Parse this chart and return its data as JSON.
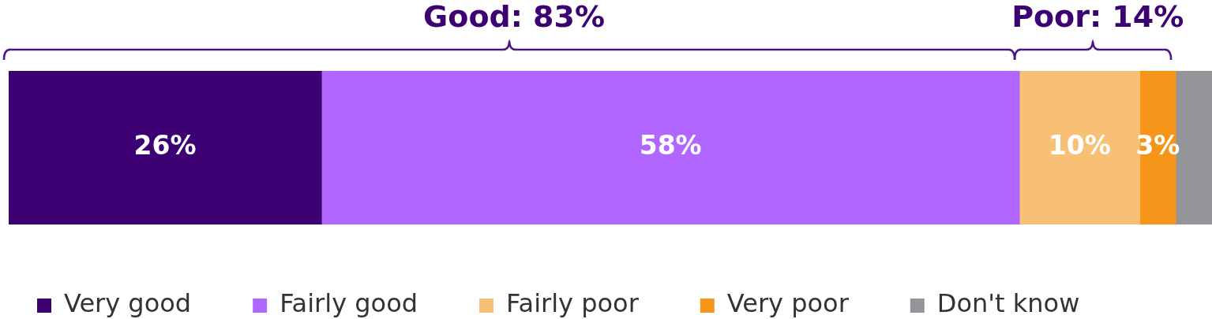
{
  "chart_data": {
    "type": "bar",
    "orientation": "horizontal",
    "stacked": true,
    "categories": [
      null
    ],
    "series": [
      {
        "name": "Very good",
        "color": "#3d0073",
        "values": [
          26
        ],
        "value_labels": [
          "26%"
        ]
      },
      {
        "name": "Fairly good",
        "color": "#b066ff",
        "values": [
          58
        ],
        "value_labels": [
          "58%"
        ]
      },
      {
        "name": "Fairly poor",
        "color": "#f8c075",
        "values": [
          10
        ],
        "value_labels": [
          "10%"
        ]
      },
      {
        "name": "Very poor",
        "color": "#f5961b",
        "values": [
          3
        ],
        "value_labels": [
          "3%"
        ]
      },
      {
        "name": "Don't know",
        "color": "#939598",
        "values": [
          3
        ],
        "value_labels": [
          null
        ]
      }
    ],
    "annotations": [
      "Good: 83%",
      "Poor: 14%"
    ],
    "legend": "bottom",
    "tick_labels": false
  }
}
